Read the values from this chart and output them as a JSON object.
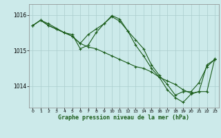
{
  "title": "Graphe pression niveau de la mer (hPa)",
  "bg_color": "#cceaea",
  "grid_color": "#aacccc",
  "line_color": "#1a5c1a",
  "xlim": [
    -0.5,
    23.5
  ],
  "ylim": [
    1013.4,
    1016.3
  ],
  "yticks": [
    1014,
    1015,
    1016
  ],
  "xticks": [
    0,
    1,
    2,
    3,
    4,
    5,
    6,
    7,
    8,
    9,
    10,
    11,
    12,
    13,
    14,
    15,
    16,
    17,
    18,
    19,
    20,
    21,
    22,
    23
  ],
  "series1_x": [
    0,
    1,
    2,
    3,
    4,
    5,
    6,
    7,
    8,
    9,
    10,
    11,
    12,
    13,
    14,
    15,
    16,
    17,
    18,
    19,
    20,
    21,
    22,
    23
  ],
  "series1_y": [
    1015.7,
    1015.85,
    1015.7,
    1015.6,
    1015.5,
    1015.4,
    1015.2,
    1015.1,
    1015.05,
    1014.95,
    1014.85,
    1014.75,
    1014.65,
    1014.55,
    1014.5,
    1014.4,
    1014.25,
    1014.15,
    1014.05,
    1013.9,
    1013.8,
    1013.85,
    1014.6,
    1014.75
  ],
  "series2_x": [
    0,
    1,
    2,
    3,
    4,
    5,
    6,
    7,
    8,
    9,
    10,
    11,
    12,
    13,
    14,
    15,
    16,
    17,
    18,
    19,
    20,
    21,
    22,
    23
  ],
  "series2_y": [
    1015.7,
    1015.85,
    1015.7,
    1015.6,
    1015.5,
    1015.45,
    1015.05,
    1015.15,
    1015.5,
    1015.75,
    1015.95,
    1015.82,
    1015.55,
    1015.3,
    1015.05,
    1014.6,
    1014.3,
    1014.05,
    1013.75,
    1013.85,
    1013.85,
    1014.1,
    1014.55,
    1014.75
  ],
  "series3_x": [
    0,
    1,
    2,
    4,
    5,
    6,
    7,
    8,
    9,
    10,
    11,
    12,
    13,
    14,
    15,
    16,
    17,
    18,
    19,
    20,
    21,
    22,
    23
  ],
  "series3_y": [
    1015.7,
    1015.85,
    1015.75,
    1015.5,
    1015.4,
    1015.2,
    1015.45,
    1015.6,
    1015.75,
    1015.98,
    1015.88,
    1015.55,
    1015.15,
    1014.85,
    1014.5,
    1014.25,
    1013.9,
    1013.68,
    1013.55,
    1013.78,
    1013.85,
    1013.85,
    1014.78
  ]
}
